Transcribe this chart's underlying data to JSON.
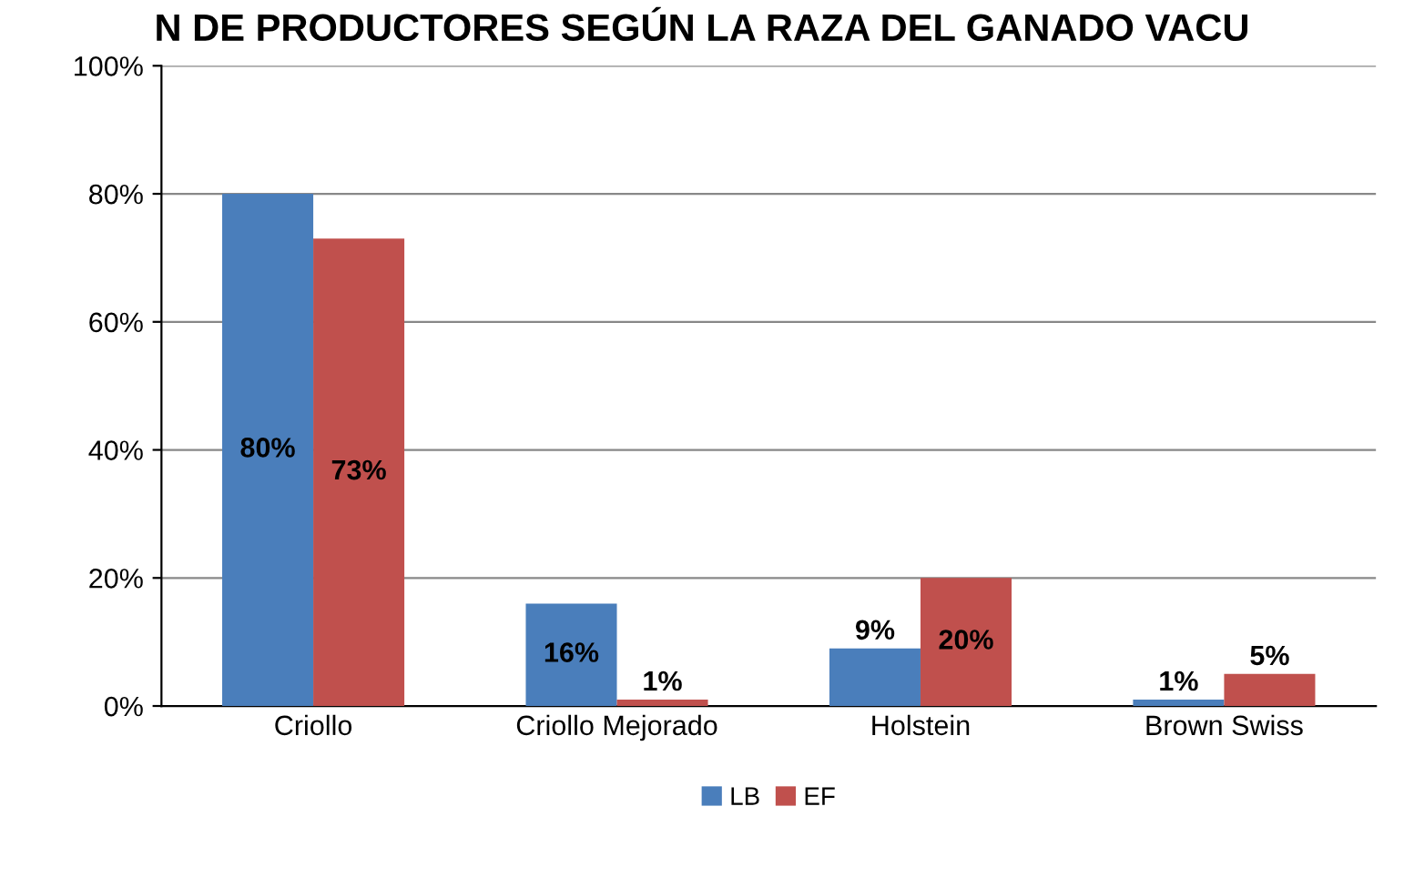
{
  "chart_data": {
    "type": "bar",
    "title": "N DE PRODUCTORES SEGÚN LA RAZA DEL GANADO VACU",
    "categories": [
      "Criollo",
      "Criollo Mejorado",
      "Holstein",
      "Brown Swiss"
    ],
    "series": [
      {
        "name": "LB",
        "color": "#4a7ebb",
        "values": [
          80,
          16,
          9,
          1
        ],
        "value_labels": [
          "80%",
          "16%",
          "9%",
          "1%"
        ]
      },
      {
        "name": "EF",
        "color": "#c0504d",
        "values": [
          73,
          1,
          20,
          5
        ],
        "value_labels": [
          "73%",
          "1%",
          "20%",
          "5%"
        ]
      }
    ],
    "ylim": [
      0,
      100
    ],
    "yticks": [
      {
        "value": 0,
        "label": "0%"
      },
      {
        "value": 20,
        "label": "20%"
      },
      {
        "value": 40,
        "label": "40%"
      },
      {
        "value": 60,
        "label": "60%"
      },
      {
        "value": 80,
        "label": "80%"
      },
      {
        "value": 100,
        "label": "100%"
      }
    ],
    "grid": "y",
    "legend": "bottom"
  }
}
